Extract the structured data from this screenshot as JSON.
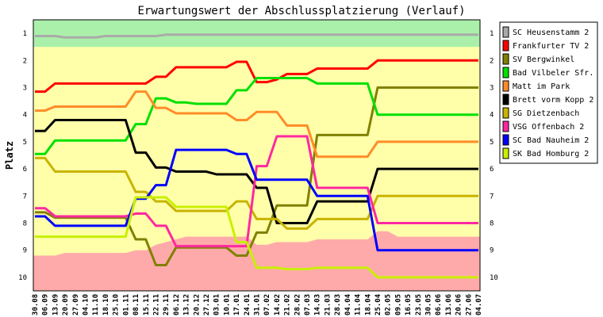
{
  "chart_data": {
    "type": "line",
    "title": "Erwartungswert der Abschlussplatzierung (Verlauf)",
    "ylabel": "Platz",
    "ylim": [
      10.5,
      0.5
    ],
    "y_ticks": [
      1,
      2,
      3,
      4,
      5,
      6,
      7,
      8,
      9,
      10
    ],
    "x": [
      "30.08",
      "06.09",
      "13.09",
      "20.09",
      "27.09",
      "04.10",
      "11.10",
      "18.10",
      "25.10",
      "01.11",
      "08.11",
      "15.11",
      "22.11",
      "29.11",
      "06.12",
      "13.12",
      "20.12",
      "27.12",
      "03.01",
      "10.01",
      "17.01",
      "24.01",
      "31.01",
      "07.02",
      "14.02",
      "21.02",
      "28.02",
      "07.03",
      "14.03",
      "21.03",
      "28.03",
      "04.04",
      "11.04",
      "18.04",
      "25.04",
      "02.05",
      "09.05",
      "16.05",
      "23.05",
      "30.05",
      "06.06",
      "13.06",
      "20.06",
      "27.06",
      "04.07"
    ],
    "legend_position": "right",
    "background": {
      "upper_band": {
        "color": "#aaf0aa",
        "min": 0.5,
        "max": 1.5
      },
      "middle_band": {
        "color": "#ffffaa"
      },
      "lower_band": {
        "color": "#ffaaaa",
        "max": 10.5
      }
    },
    "relegation_boundary": [
      9.2,
      9.2,
      9.2,
      9.1,
      9.1,
      9.1,
      9.1,
      9.1,
      9.1,
      9.1,
      9.0,
      9.0,
      8.8,
      8.7,
      8.6,
      8.5,
      8.5,
      8.5,
      8.5,
      8.5,
      8.5,
      8.5,
      8.8,
      8.8,
      8.7,
      8.7,
      8.7,
      8.7,
      8.6,
      8.6,
      8.6,
      8.6,
      8.6,
      8.6,
      8.3,
      8.3,
      8.5,
      8.5,
      8.5,
      8.5,
      8.5,
      8.5,
      8.5,
      8.5,
      8.5
    ],
    "series": [
      {
        "name": "SC Heusenstamm 2",
        "color": "#aaaaaa",
        "values": [
          1.1,
          1.1,
          1.1,
          1.15,
          1.15,
          1.15,
          1.15,
          1.1,
          1.1,
          1.1,
          1.1,
          1.1,
          1.1,
          1.05,
          1.05,
          1.05,
          1.05,
          1.05,
          1.05,
          1.05,
          1.05,
          1.05,
          1.05,
          1.05,
          1.05,
          1.05,
          1.05,
          1.05,
          1.05,
          1.05,
          1.05,
          1.05,
          1.05,
          1.05,
          1.05,
          1.05,
          1.05,
          1.05,
          1.05,
          1.05,
          1.05,
          1.05,
          1.05,
          1.05,
          1.05
        ]
      },
      {
        "name": "Frankfurter TV 2",
        "color": "#ff0000",
        "values": [
          3.15,
          3.15,
          2.85,
          2.85,
          2.85,
          2.85,
          2.85,
          2.85,
          2.85,
          2.85,
          2.85,
          2.85,
          2.6,
          2.6,
          2.25,
          2.25,
          2.25,
          2.25,
          2.25,
          2.25,
          2.05,
          2.05,
          2.8,
          2.8,
          2.7,
          2.5,
          2.5,
          2.5,
          2.3,
          2.3,
          2.3,
          2.3,
          2.3,
          2.3,
          2.0,
          2.0,
          2.0,
          2.0,
          2.0,
          2.0,
          2.0,
          2.0,
          2.0,
          2.0,
          2.0
        ]
      },
      {
        "name": "SV Bergwinkel",
        "color": "#808000",
        "values": [
          7.6,
          7.6,
          7.8,
          7.8,
          7.8,
          7.8,
          7.8,
          7.8,
          7.8,
          7.8,
          8.6,
          8.6,
          9.55,
          9.55,
          8.9,
          8.9,
          8.9,
          8.9,
          8.9,
          8.9,
          9.2,
          9.2,
          8.35,
          8.35,
          7.35,
          7.35,
          7.35,
          7.35,
          4.75,
          4.75,
          4.75,
          4.75,
          4.75,
          4.75,
          3.0,
          3.0,
          3.0,
          3.0,
          3.0,
          3.0,
          3.0,
          3.0,
          3.0,
          3.0,
          3.0
        ]
      },
      {
        "name": "Bad Vilbeler Sfr.",
        "color": "#00e000",
        "values": [
          5.45,
          5.45,
          4.95,
          4.95,
          4.95,
          4.95,
          4.95,
          4.95,
          4.95,
          4.95,
          4.35,
          4.35,
          3.4,
          3.4,
          3.55,
          3.55,
          3.6,
          3.6,
          3.6,
          3.6,
          3.1,
          3.1,
          2.65,
          2.65,
          2.65,
          2.65,
          2.65,
          2.65,
          2.85,
          2.85,
          2.85,
          2.85,
          2.85,
          2.85,
          4.0,
          4.0,
          4.0,
          4.0,
          4.0,
          4.0,
          4.0,
          4.0,
          4.0,
          4.0,
          4.0
        ]
      },
      {
        "name": "Matt im Park",
        "color": "#ff8c28",
        "values": [
          3.85,
          3.85,
          3.7,
          3.7,
          3.7,
          3.7,
          3.7,
          3.7,
          3.7,
          3.7,
          3.15,
          3.15,
          3.75,
          3.75,
          3.95,
          3.95,
          3.95,
          3.95,
          3.95,
          3.95,
          4.2,
          4.2,
          3.9,
          3.9,
          3.9,
          4.4,
          4.4,
          4.4,
          5.55,
          5.55,
          5.55,
          5.55,
          5.55,
          5.55,
          5.0,
          5.0,
          5.0,
          5.0,
          5.0,
          5.0,
          5.0,
          5.0,
          5.0,
          5.0,
          5.0
        ]
      },
      {
        "name": "Brett vorm Kopp 2",
        "color": "#000000",
        "values": [
          4.6,
          4.6,
          4.2,
          4.2,
          4.2,
          4.2,
          4.2,
          4.2,
          4.2,
          4.2,
          5.4,
          5.4,
          5.95,
          5.95,
          6.1,
          6.1,
          6.1,
          6.1,
          6.2,
          6.2,
          6.2,
          6.2,
          6.7,
          6.7,
          8.0,
          8.0,
          8.0,
          8.0,
          7.2,
          7.2,
          7.2,
          7.2,
          7.2,
          7.2,
          6.0,
          6.0,
          6.0,
          6.0,
          6.0,
          6.0,
          6.0,
          6.0,
          6.0,
          6.0,
          6.0
        ]
      },
      {
        "name": "SG Dietzenbach",
        "color": "#c8b400",
        "values": [
          5.6,
          5.6,
          6.1,
          6.1,
          6.1,
          6.1,
          6.1,
          6.1,
          6.1,
          6.1,
          6.85,
          6.85,
          7.2,
          7.2,
          7.55,
          7.55,
          7.55,
          7.55,
          7.55,
          7.55,
          7.2,
          7.2,
          7.85,
          7.85,
          7.85,
          8.2,
          8.2,
          8.2,
          7.85,
          7.85,
          7.85,
          7.85,
          7.85,
          7.85,
          7.0,
          7.0,
          7.0,
          7.0,
          7.0,
          7.0,
          7.0,
          7.0,
          7.0,
          7.0,
          7.0
        ]
      },
      {
        "name": "VSG Offenbach 2",
        "color": "#ff28a0",
        "values": [
          7.45,
          7.45,
          7.75,
          7.75,
          7.75,
          7.75,
          7.75,
          7.75,
          7.75,
          7.75,
          7.65,
          7.65,
          8.1,
          8.1,
          8.85,
          8.85,
          8.85,
          8.85,
          8.85,
          8.85,
          8.85,
          8.85,
          5.9,
          5.9,
          4.8,
          4.8,
          4.8,
          4.8,
          6.7,
          6.7,
          6.7,
          6.7,
          6.7,
          6.7,
          8.0,
          8.0,
          8.0,
          8.0,
          8.0,
          8.0,
          8.0,
          8.0,
          8.0,
          8.0,
          8.0
        ]
      },
      {
        "name": "SC Bad Nauheim 2",
        "color": "#0000ff",
        "values": [
          7.75,
          7.75,
          8.1,
          8.1,
          8.1,
          8.1,
          8.1,
          8.1,
          8.1,
          8.1,
          7.1,
          7.1,
          6.6,
          6.6,
          5.3,
          5.3,
          5.3,
          5.3,
          5.3,
          5.3,
          5.45,
          5.45,
          6.4,
          6.4,
          6.4,
          6.4,
          6.4,
          6.4,
          7.0,
          7.0,
          7.0,
          7.0,
          7.0,
          7.0,
          9.0,
          9.0,
          9.0,
          9.0,
          9.0,
          9.0,
          9.0,
          9.0,
          9.0,
          9.0,
          9.0
        ]
      },
      {
        "name": "SK Bad Homburg 2",
        "color": "#c8f000",
        "values": [
          8.5,
          8.5,
          8.5,
          8.5,
          8.5,
          8.5,
          8.5,
          8.5,
          8.5,
          8.5,
          7.05,
          7.05,
          7.05,
          7.05,
          7.4,
          7.4,
          7.4,
          7.4,
          7.4,
          7.4,
          8.7,
          8.7,
          9.65,
          9.65,
          9.65,
          9.7,
          9.7,
          9.7,
          9.65,
          9.65,
          9.65,
          9.65,
          9.65,
          9.65,
          10.0,
          10.0,
          10.0,
          10.0,
          10.0,
          10.0,
          10.0,
          10.0,
          10.0,
          10.0,
          10.0
        ]
      }
    ]
  }
}
